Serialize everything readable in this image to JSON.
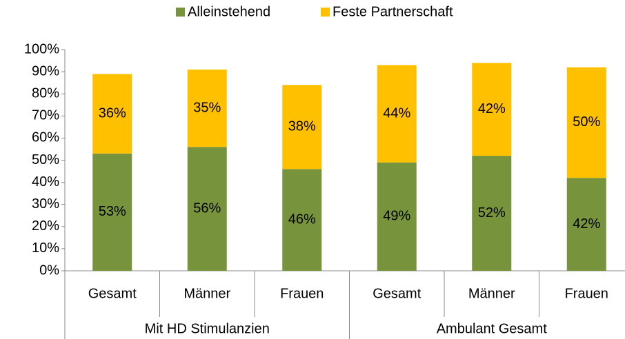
{
  "chart_data": {
    "type": "stacked_bar",
    "categories": [
      "Gesamt",
      "Männer",
      "Frauen",
      "Gesamt",
      "Männer",
      "Frauen"
    ],
    "groups": [
      "Mit HD Stimulanzien",
      "Ambulant Gesamt"
    ],
    "series": [
      {
        "name": "Alleinstehend",
        "color": "#77933c",
        "values": [
          53,
          56,
          46,
          49,
          52,
          42
        ],
        "value_labels": [
          "53%",
          "56%",
          "46%",
          "49%",
          "52%",
          "42%"
        ]
      },
      {
        "name": "Feste Partnerschaft",
        "color": "#ffc000",
        "values": [
          36,
          35,
          38,
          44,
          42,
          50
        ],
        "value_labels": [
          "36%",
          "35%",
          "38%",
          "44%",
          "42%",
          "50%"
        ]
      }
    ],
    "ylim": [
      0,
      100
    ],
    "yticks": [
      {
        "value": 0,
        "label": "0%"
      },
      {
        "value": 10,
        "label": "10%"
      },
      {
        "value": 20,
        "label": "20%"
      },
      {
        "value": 30,
        "label": "30%"
      },
      {
        "value": 40,
        "label": "40%"
      },
      {
        "value": 50,
        "label": "50%"
      },
      {
        "value": 60,
        "label": "60%"
      },
      {
        "value": 70,
        "label": "70%"
      },
      {
        "value": 80,
        "label": "80%"
      },
      {
        "value": 90,
        "label": "90%"
      },
      {
        "value": 100,
        "label": "100%"
      }
    ],
    "legend": "top"
  }
}
